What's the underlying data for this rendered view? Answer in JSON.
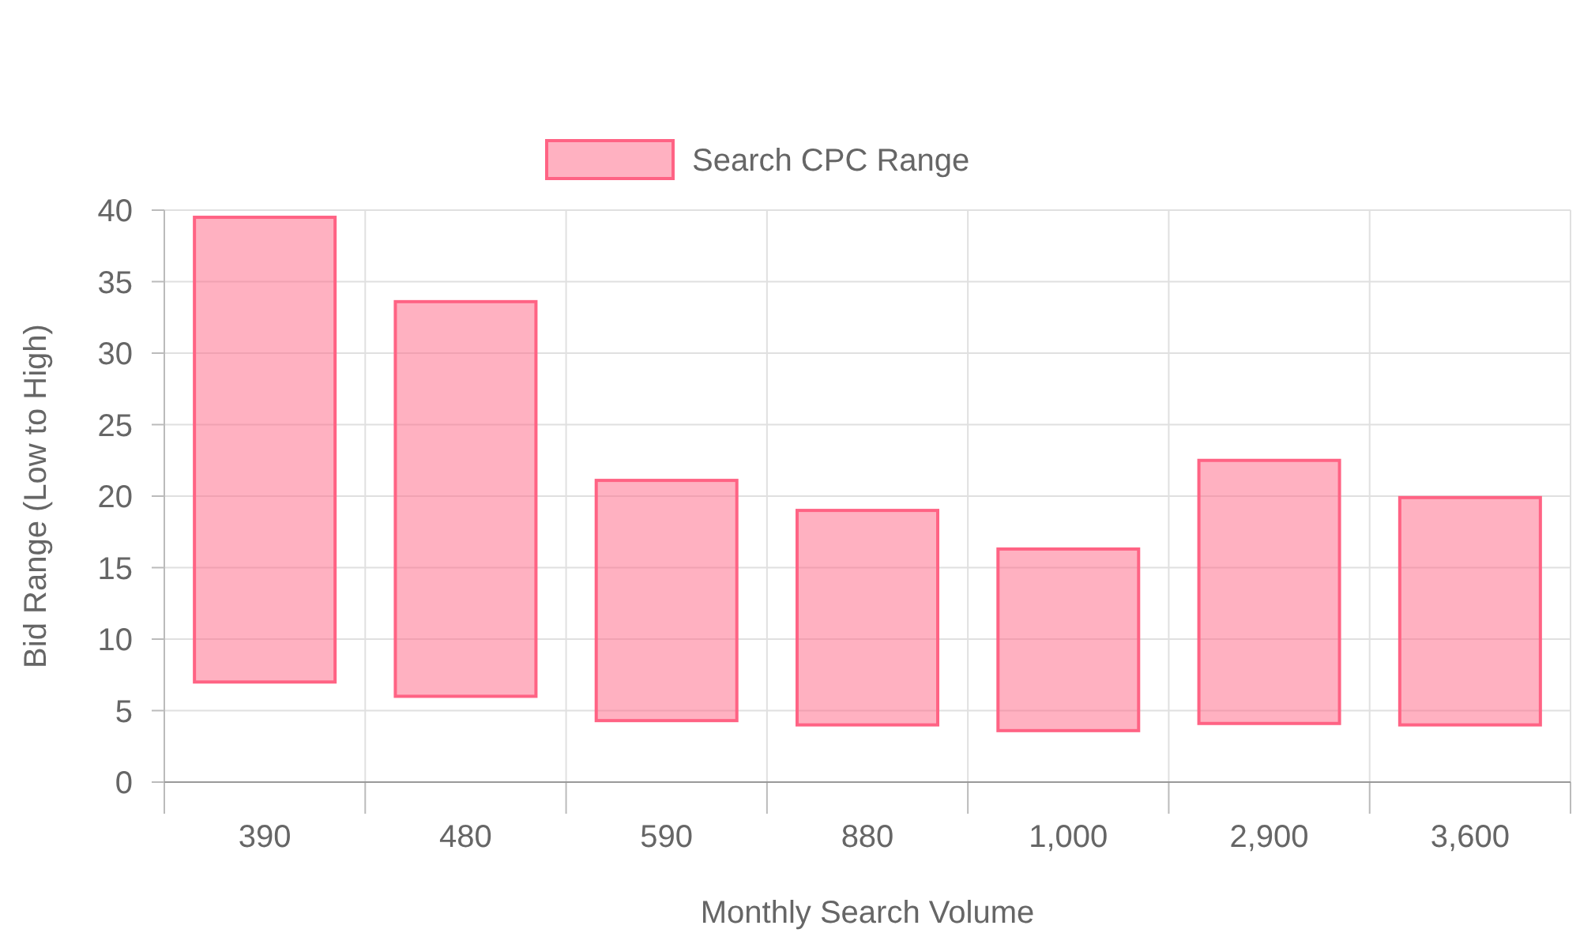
{
  "chart_data": {
    "type": "bar",
    "xlabel": "Monthly Search Volume",
    "ylabel": "Bid Range (Low to High)",
    "categories": [
      "390",
      "480",
      "590",
      "880",
      "1,000",
      "2,900",
      "3,600"
    ],
    "series": [
      {
        "name": "Search CPC Range",
        "color": "#ff6384",
        "values": [
          32.5,
          27.6,
          16.8,
          15,
          12.7,
          18.4,
          15.9
        ],
        "base": [
          7,
          6,
          4.3,
          4,
          3.6,
          4.1,
          4
        ]
      }
    ],
    "ylim": [
      0,
      40
    ],
    "yticks": [
      0,
      5,
      10,
      15,
      20,
      25,
      30,
      35,
      40
    ],
    "grid": true,
    "legend": "top"
  }
}
